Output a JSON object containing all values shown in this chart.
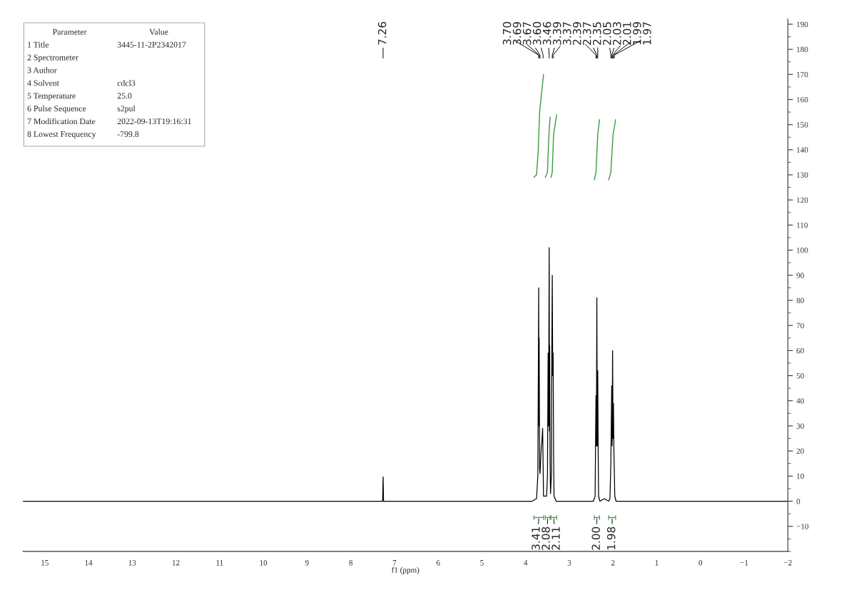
{
  "chart_data": {
    "type": "line",
    "xlabel": "f1 (ppm)",
    "xlim": [
      15.5,
      -2
    ],
    "xticks": [
      15,
      14,
      13,
      12,
      11,
      10,
      9,
      8,
      7,
      6,
      5,
      4,
      3,
      2,
      1,
      0,
      -1,
      -2
    ],
    "ylim": [
      -20,
      192
    ],
    "yticks": [
      -10,
      0,
      10,
      20,
      30,
      40,
      50,
      60,
      70,
      80,
      90,
      100,
      110,
      120,
      130,
      140,
      150,
      160,
      170,
      180,
      190
    ],
    "grid": false,
    "legend": false,
    "line_style": "solid",
    "marker": "none",
    "series": [
      {
        "color": "#000000",
        "x": [
          15.5,
          7.3,
          7.27,
          7.26,
          7.25,
          7.22,
          3.85,
          3.75,
          3.72,
          3.7,
          3.695,
          3.69,
          3.68,
          3.67,
          3.66,
          3.64,
          3.63,
          3.61,
          3.6,
          3.59,
          3.52,
          3.5,
          3.485,
          3.475,
          3.46,
          3.455,
          3.45,
          3.44,
          3.43,
          3.41,
          3.4,
          3.39,
          3.38,
          3.37,
          3.36,
          3.35,
          3.3,
          2.45,
          2.41,
          2.39,
          2.38,
          2.37,
          2.36,
          2.35,
          2.34,
          2.33,
          2.3,
          2.2,
          2.1,
          2.07,
          2.05,
          2.04,
          2.03,
          2.02,
          2.01,
          2.0,
          1.99,
          1.98,
          1.97,
          1.96,
          1.93,
          -2
        ],
        "values": [
          0,
          0,
          0,
          9.7,
          0,
          0,
          0,
          1,
          10,
          85,
          30,
          65,
          13,
          11,
          15,
          22,
          23,
          29,
          15,
          2,
          2,
          10,
          59,
          30,
          101,
          28,
          62,
          15,
          3,
          10,
          60,
          90,
          50,
          59,
          20,
          2,
          0,
          0,
          2,
          42,
          22,
          81,
          22,
          52,
          20,
          2,
          0,
          1,
          0,
          1,
          15,
          30,
          46,
          22,
          60,
          25,
          39,
          20,
          12,
          2,
          0,
          0
        ]
      },
      {
        "color": "#3a9a3a",
        "x": [
          3.81,
          3.75,
          3.71,
          3.68,
          3.62,
          3.59
        ],
        "values": [
          129,
          130,
          140,
          155,
          165,
          170
        ]
      },
      {
        "color": "#3a9a3a",
        "x": [
          3.55,
          3.5,
          3.47,
          3.44
        ],
        "values": [
          129,
          131,
          145,
          153
        ]
      },
      {
        "color": "#3a9a3a",
        "x": [
          3.42,
          3.39,
          3.36,
          3.29
        ],
        "values": [
          129,
          131,
          146,
          154
        ]
      },
      {
        "color": "#3a9a3a",
        "x": [
          2.43,
          2.39,
          2.35,
          2.31
        ],
        "values": [
          128,
          131,
          146,
          152
        ]
      },
      {
        "color": "#3a9a3a",
        "x": [
          2.1,
          2.05,
          2.0,
          1.94
        ],
        "values": [
          128,
          131,
          146,
          152
        ]
      }
    ],
    "annotations": [
      "7.26",
      "3.70",
      "3.69",
      "3.67",
      "3.60",
      "3.46",
      "3.39",
      "3.37",
      "2.39",
      "2.37",
      "2.35",
      "2.05",
      "2.03",
      "2.01",
      "1.99",
      "1.97",
      "3.41",
      "2.08",
      "2.11",
      "2.00",
      "1.98",
      "Parameter\tValue",
      "1 Title\t3445-11-2P2342017",
      "2 Spectrometer",
      "3 Author",
      "4 Solvent\tcdcl3",
      "5 Temperature\t25.0",
      "6 Pulse Sequence\ts2pul",
      "7 Modification Date\t2022-09-13T19:16:31",
      "8 Lowest Frequency\t-799.8"
    ]
  }
}
